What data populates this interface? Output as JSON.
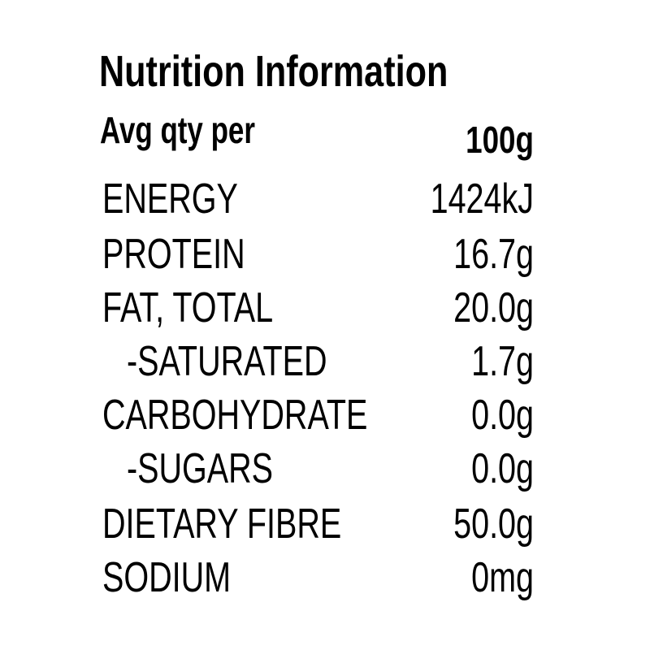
{
  "title": "Nutrition Information",
  "header": {
    "label": "Avg qty per",
    "value": "100g"
  },
  "table": {
    "rows": [
      [
        "ENERGY",
        "1424kJ"
      ],
      [
        "PROTEIN",
        "16.7g"
      ],
      [
        "FAT, TOTAL",
        "20.0g"
      ],
      [
        "-SATURATED",
        "1.7g"
      ],
      [
        "CARBOHYDRATE",
        "0.0g"
      ],
      [
        "-SUGARS",
        "0.0g"
      ],
      [
        "DIETARY FIBRE",
        "50.0g"
      ],
      [
        "SODIUM",
        "0mg"
      ]
    ]
  }
}
